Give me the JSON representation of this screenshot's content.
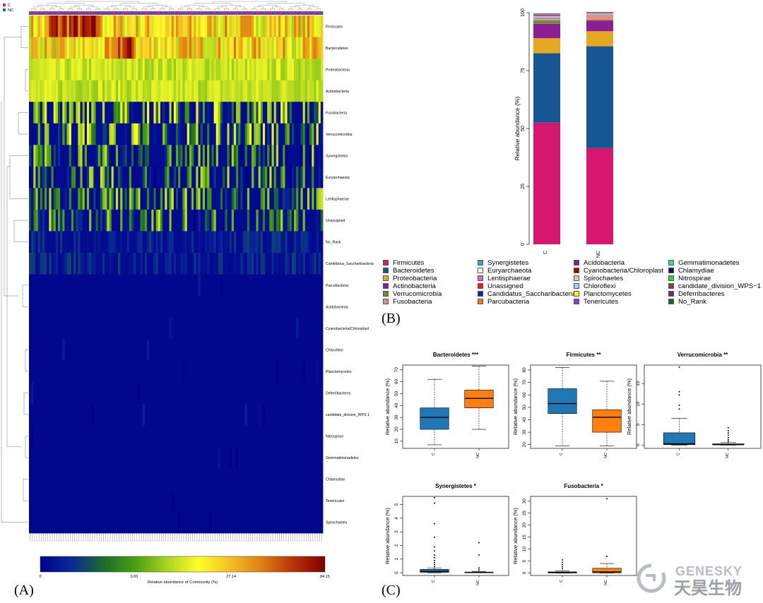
{
  "figure": {
    "panel_labels": [
      "(A)",
      "(B)",
      "(C)"
    ]
  },
  "logo": {
    "text_en": "GENESKY",
    "text_cn": "天昊生物",
    "colors": [
      "#b9bec4",
      "#9aa0a6"
    ]
  },
  "chart_data": [
    {
      "type": "heatmap",
      "panel": "A",
      "group_legend": [
        {
          "name": "C",
          "color": "#d6217b"
        },
        {
          "name": "NC",
          "color": "#2166ac"
        }
      ],
      "rows": [
        "Firmicutes",
        "Bacteroidetes",
        "Proteobacteria",
        "Actinobacteria",
        "Fusobacteria",
        "Verrucomicrobia",
        "Synergistetes",
        "Euryarchaeota",
        "Lentisphaerae",
        "Unassigned",
        "No_Rank",
        "Candidatus_Saccharibacteria",
        "Parcubacteria",
        "Acidobacteria",
        "Cyanobacteria/Chloroplast",
        "Chloroflexi",
        "Planctomycetes",
        "Deferribacteres",
        "candidate_division_WPS-1",
        "Nitrospirae",
        "Gemmatimonadetes",
        "Chlamydiae",
        "Tenericutes",
        "Spirochaetes"
      ],
      "n_samples": 132,
      "row_mean_abundance": [
        40.2,
        47.1,
        3.1,
        2.6,
        0.9,
        1.8,
        0.3,
        0.25,
        0.3,
        0.25,
        0.2,
        0.08,
        0.05,
        0.04,
        0.05,
        0.03,
        0.02,
        0.015,
        0.01,
        0.01,
        0.01,
        0.01,
        0.01,
        0.01
      ],
      "colorbar": {
        "ticks": [
          "0",
          "0.03",
          "27.14",
          "84.15"
        ],
        "label": "Relative abundance of Community (%)",
        "colors": [
          "#00008b",
          "#0a2a96",
          "#1d6a2c",
          "#49a010",
          "#a8d41e",
          "#ffff2a",
          "#f2c023",
          "#de7f10",
          "#b83206",
          "#800000"
        ]
      }
    },
    {
      "type": "bar",
      "panel": "B",
      "stacked": true,
      "categories": [
        "C",
        "NC"
      ],
      "ylabel": "Relative abundance (%)",
      "ylim": [
        0,
        100
      ],
      "yticks": [
        "0",
        "25",
        "50",
        "75",
        "100"
      ],
      "series": [
        {
          "name": "Firmicutes",
          "color": "#d6166f",
          "values": [
            52.5,
            41.5
          ]
        },
        {
          "name": "Bacteroidetes",
          "color": "#165693",
          "values": [
            30.0,
            44.0
          ]
        },
        {
          "name": "Proteobacteria",
          "color": "#e6a820",
          "values": [
            6.5,
            6.5
          ]
        },
        {
          "name": "Actinobacteria",
          "color": "#8b1e96",
          "values": [
            6.2,
            4.5
          ]
        },
        {
          "name": "Verrucomicrobia",
          "color": "#6f8e2d",
          "values": [
            1.5,
            0.5
          ]
        },
        {
          "name": "Fusobacteria",
          "color": "#ee8a8a",
          "values": [
            0.8,
            2.0
          ]
        },
        {
          "name": "Synergistetes",
          "color": "#29a9d8",
          "values": [
            0.5,
            0.3
          ]
        },
        {
          "name": "Euryarchaeota",
          "color": "#fffbe6",
          "values": [
            0.3,
            0.2
          ]
        },
        {
          "name": "Lentisphaerae",
          "color": "#e95ad8",
          "values": [
            0.3,
            0.1
          ]
        },
        {
          "name": "Unassigned",
          "color": "#ee1b1b",
          "values": [
            0.2,
            0.1
          ]
        },
        {
          "name": "Candidatus_Saccharibacteria",
          "color": "#1a1ac4",
          "values": [
            0.2,
            0.1
          ]
        },
        {
          "name": "Parcubacteria",
          "color": "#f47b10",
          "values": [
            0.1,
            0.05
          ]
        },
        {
          "name": "Acidobacteria",
          "color": "#8c1c8c",
          "values": [
            0.1,
            0.05
          ]
        },
        {
          "name": "Cyanobacteria/Chloroplast",
          "color": "#8c1010",
          "values": [
            0.1,
            0.05
          ]
        },
        {
          "name": "Spirochaetes",
          "color": "#f7b6b6",
          "values": [
            0.1,
            0.05
          ]
        },
        {
          "name": "Chloroflexi",
          "color": "#8ed8f0",
          "values": [
            0.05,
            0.05
          ]
        },
        {
          "name": "Planctomycetes",
          "color": "#f5f520",
          "values": [
            0.05,
            0.05
          ]
        },
        {
          "name": "Tenericutes",
          "color": "#8f3bd0",
          "values": [
            0.05,
            0.05
          ]
        },
        {
          "name": "Gemmatimonadetes",
          "color": "#25e08a",
          "values": [
            0.02,
            0.02
          ]
        },
        {
          "name": "Chlamydiae",
          "color": "#101070",
          "values": [
            0.02,
            0.02
          ]
        },
        {
          "name": "Nitrospirae",
          "color": "#22e022",
          "values": [
            0.02,
            0.02
          ]
        },
        {
          "name": "candidate_division_WPS−1",
          "color": "#7a4a3a",
          "values": [
            0.02,
            0.02
          ]
        },
        {
          "name": "Deferribacteres",
          "color": "#6a2a8a",
          "values": [
            0.02,
            0.02
          ]
        },
        {
          "name": "No_Rank",
          "color": "#1b6a2b",
          "values": [
            0.02,
            0.02
          ]
        }
      ]
    },
    {
      "type": "box",
      "panel": "C",
      "ylabel": "Relative abundance (%)",
      "categories": [
        "C",
        "NC"
      ],
      "colors": [
        "#1f78b4",
        "#ff7f0e"
      ],
      "plots": [
        {
          "title": "Bacteroidetes ***",
          "ylim": [
            4,
            74
          ],
          "yticks": [
            10,
            20,
            30,
            40,
            50,
            60,
            70
          ],
          "boxes": [
            {
              "min": 7,
              "q1": 20,
              "median": 30,
              "q3": 38,
              "max": 62,
              "outliers": []
            },
            {
              "min": 20,
              "q1": 38,
              "median": 46,
              "q3": 53,
              "max": 73,
              "outliers": []
            }
          ]
        },
        {
          "title": "Firmicutes **",
          "ylim": [
            17,
            84
          ],
          "yticks": [
            20,
            30,
            40,
            50,
            60,
            70,
            80
          ],
          "boxes": [
            {
              "min": 19,
              "q1": 45,
              "median": 53,
              "q3": 65,
              "max": 82,
              "outliers": []
            },
            {
              "min": 19,
              "q1": 30,
              "median": 42,
              "q3": 48,
              "max": 71,
              "outliers": []
            }
          ]
        },
        {
          "title": "Verrucomicrobia **",
          "ylim": [
            -0.8,
            19.5
          ],
          "yticks": [
            0,
            5,
            10,
            15
          ],
          "boxes": [
            {
              "min": 0,
              "q1": 0.1,
              "median": 0.3,
              "q3": 3,
              "max": 6.5,
              "outliers": [
                8.8,
                9.7,
                12.2,
                13,
                19
              ]
            },
            {
              "min": 0,
              "q1": 0.05,
              "median": 0.15,
              "q3": 0.3,
              "max": 0.6,
              "outliers": [
                0.9,
                1.3,
                1.8,
                2.4,
                3.0,
                3.5,
                4.2
              ]
            }
          ]
        },
        {
          "title": "Synergistetes *",
          "ylim": [
            -0.2,
            5.6
          ],
          "yticks": [
            0,
            1,
            2,
            3,
            4,
            5
          ],
          "boxes": [
            {
              "min": 0,
              "q1": 0.03,
              "median": 0.1,
              "q3": 0.25,
              "max": 0.35,
              "outliers": [
                0.45,
                0.6,
                0.75,
                0.9,
                1.1,
                1.3,
                1.6,
                1.9,
                2.6,
                3.6,
                5.1,
                5.5
              ]
            },
            {
              "min": 0,
              "q1": 0.0,
              "median": 0.02,
              "q3": 0.05,
              "max": 0.1,
              "outliers": [
                0.2,
                0.35,
                1.3,
                2.2
              ]
            }
          ]
        },
        {
          "title": "Fusobacteria *",
          "ylim": [
            -1,
            32
          ],
          "yticks": [
            0,
            5,
            10,
            15,
            20,
            25,
            30
          ],
          "boxes": [
            {
              "min": 0,
              "q1": 0.05,
              "median": 0.2,
              "q3": 0.5,
              "max": 1.0,
              "outliers": [
                1.8,
                2.6,
                3.5,
                4.4,
                5.5
              ]
            },
            {
              "min": 0,
              "q1": 0.1,
              "median": 0.5,
              "q3": 2.0,
              "max": 4.0,
              "outliers": [
                7.0,
                31
              ]
            }
          ]
        }
      ]
    }
  ]
}
